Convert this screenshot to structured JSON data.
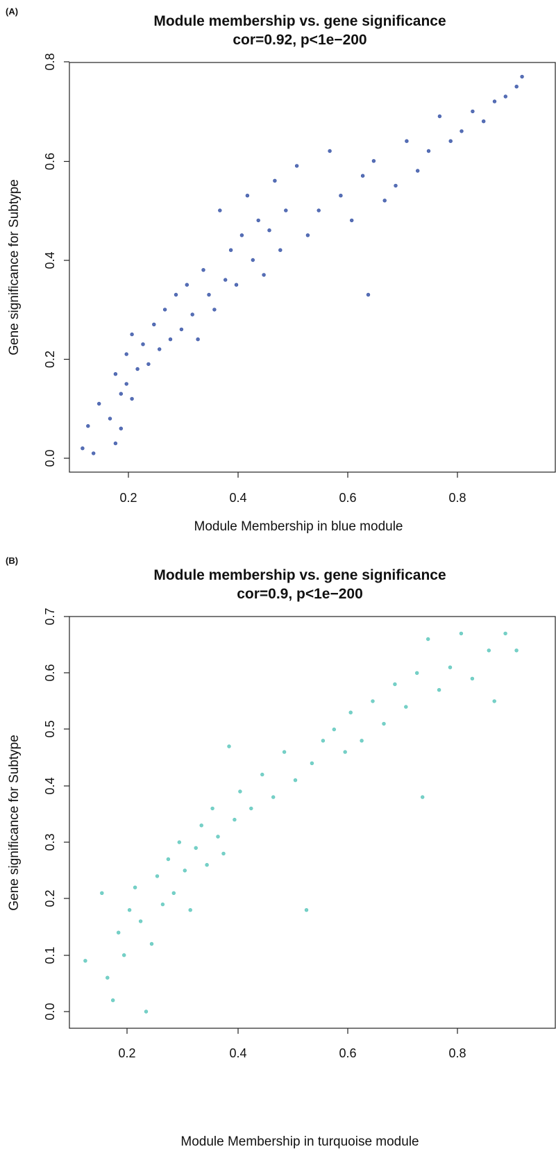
{
  "panels": [
    {
      "panel_label": "(A)",
      "title_line1": "Module membership vs. gene significance",
      "title_line2": "cor=0.92, p<1e−200",
      "xlabel": "Module Membership in blue module",
      "ylabel": "Gene significance for Subtype",
      "point_color": "#3a56a8"
    },
    {
      "panel_label": "(B)",
      "title_line1": "Module membership vs. gene significance",
      "title_line2": "cor=0.9, p<1e−200",
      "xlabel": "Module Membership in turquoise module",
      "ylabel": "Gene significance for Subtype",
      "point_color": "#5fc8bd"
    }
  ],
  "chart_data": [
    {
      "type": "scatter",
      "title": "Module membership vs. gene significance",
      "subtitle": "cor=0.92, p<1e−200",
      "xlabel": "Module Membership in blue module",
      "ylabel": "Gene significance for Subtype",
      "xlim": [
        0.1,
        0.92
      ],
      "ylim": [
        0.0,
        0.8
      ],
      "xticks": [
        "0.2",
        "0.4",
        "0.6",
        "0.8"
      ],
      "yticks": [
        "0.0",
        "0.2",
        "0.4",
        "0.6",
        "0.8"
      ],
      "color": "#3a56a8",
      "grid": false,
      "points": [
        [
          0.11,
          0.02
        ],
        [
          0.13,
          0.01
        ],
        [
          0.12,
          0.065
        ],
        [
          0.14,
          0.11
        ],
        [
          0.16,
          0.08
        ],
        [
          0.17,
          0.03
        ],
        [
          0.18,
          0.06
        ],
        [
          0.17,
          0.17
        ],
        [
          0.18,
          0.13
        ],
        [
          0.19,
          0.15
        ],
        [
          0.2,
          0.12
        ],
        [
          0.21,
          0.18
        ],
        [
          0.22,
          0.23
        ],
        [
          0.19,
          0.21
        ],
        [
          0.2,
          0.25
        ],
        [
          0.23,
          0.19
        ],
        [
          0.24,
          0.27
        ],
        [
          0.25,
          0.22
        ],
        [
          0.26,
          0.3
        ],
        [
          0.27,
          0.24
        ],
        [
          0.28,
          0.33
        ],
        [
          0.29,
          0.26
        ],
        [
          0.3,
          0.35
        ],
        [
          0.31,
          0.29
        ],
        [
          0.32,
          0.24
        ],
        [
          0.33,
          0.38
        ],
        [
          0.34,
          0.33
        ],
        [
          0.35,
          0.3
        ],
        [
          0.36,
          0.5
        ],
        [
          0.37,
          0.36
        ],
        [
          0.38,
          0.42
        ],
        [
          0.39,
          0.35
        ],
        [
          0.4,
          0.45
        ],
        [
          0.41,
          0.53
        ],
        [
          0.42,
          0.4
        ],
        [
          0.43,
          0.48
        ],
        [
          0.44,
          0.37
        ],
        [
          0.45,
          0.46
        ],
        [
          0.46,
          0.56
        ],
        [
          0.47,
          0.42
        ],
        [
          0.48,
          0.5
        ],
        [
          0.5,
          0.59
        ],
        [
          0.52,
          0.45
        ],
        [
          0.54,
          0.5
        ],
        [
          0.56,
          0.62
        ],
        [
          0.58,
          0.53
        ],
        [
          0.6,
          0.48
        ],
        [
          0.62,
          0.57
        ],
        [
          0.63,
          0.33
        ],
        [
          0.64,
          0.6
        ],
        [
          0.66,
          0.52
        ],
        [
          0.68,
          0.55
        ],
        [
          0.7,
          0.64
        ],
        [
          0.72,
          0.58
        ],
        [
          0.74,
          0.62
        ],
        [
          0.76,
          0.69
        ],
        [
          0.78,
          0.64
        ],
        [
          0.8,
          0.66
        ],
        [
          0.82,
          0.7
        ],
        [
          0.84,
          0.68
        ],
        [
          0.86,
          0.72
        ],
        [
          0.88,
          0.73
        ],
        [
          0.9,
          0.75
        ],
        [
          0.91,
          0.77
        ]
      ]
    },
    {
      "type": "scatter",
      "title": "Module membership vs. gene significance",
      "subtitle": "cor=0.9, p<1e−200",
      "xlabel": "Module Membership in turquoise module",
      "ylabel": "Gene significance for Subtype",
      "xlim": [
        0.1,
        0.92
      ],
      "ylim": [
        0.0,
        0.7
      ],
      "xticks": [
        "0.2",
        "0.4",
        "0.6",
        "0.8"
      ],
      "yticks": [
        "0.0",
        "0.1",
        "0.2",
        "0.3",
        "0.4",
        "0.5",
        "0.6",
        "0.7"
      ],
      "color": "#5fc8bd",
      "grid": false,
      "points": [
        [
          0.12,
          0.09
        ],
        [
          0.15,
          0.21
        ],
        [
          0.16,
          0.06
        ],
        [
          0.17,
          0.02
        ],
        [
          0.18,
          0.14
        ],
        [
          0.19,
          0.1
        ],
        [
          0.2,
          0.18
        ],
        [
          0.21,
          0.22
        ],
        [
          0.22,
          0.16
        ],
        [
          0.23,
          0.0
        ],
        [
          0.24,
          0.12
        ],
        [
          0.25,
          0.24
        ],
        [
          0.26,
          0.19
        ],
        [
          0.27,
          0.27
        ],
        [
          0.28,
          0.21
        ],
        [
          0.29,
          0.3
        ],
        [
          0.3,
          0.25
        ],
        [
          0.31,
          0.18
        ],
        [
          0.32,
          0.29
        ],
        [
          0.33,
          0.33
        ],
        [
          0.34,
          0.26
        ],
        [
          0.35,
          0.36
        ],
        [
          0.36,
          0.31
        ],
        [
          0.37,
          0.28
        ],
        [
          0.38,
          0.47
        ],
        [
          0.39,
          0.34
        ],
        [
          0.4,
          0.39
        ],
        [
          0.42,
          0.36
        ],
        [
          0.44,
          0.42
        ],
        [
          0.46,
          0.38
        ],
        [
          0.48,
          0.46
        ],
        [
          0.5,
          0.41
        ],
        [
          0.52,
          0.18
        ],
        [
          0.53,
          0.44
        ],
        [
          0.55,
          0.48
        ],
        [
          0.57,
          0.5
        ],
        [
          0.59,
          0.46
        ],
        [
          0.6,
          0.53
        ],
        [
          0.62,
          0.48
        ],
        [
          0.64,
          0.55
        ],
        [
          0.66,
          0.51
        ],
        [
          0.68,
          0.58
        ],
        [
          0.7,
          0.54
        ],
        [
          0.72,
          0.6
        ],
        [
          0.73,
          0.38
        ],
        [
          0.74,
          0.66
        ],
        [
          0.76,
          0.57
        ],
        [
          0.78,
          0.61
        ],
        [
          0.8,
          0.67
        ],
        [
          0.82,
          0.59
        ],
        [
          0.85,
          0.64
        ],
        [
          0.86,
          0.55
        ],
        [
          0.88,
          0.67
        ],
        [
          0.9,
          0.64
        ]
      ]
    }
  ]
}
